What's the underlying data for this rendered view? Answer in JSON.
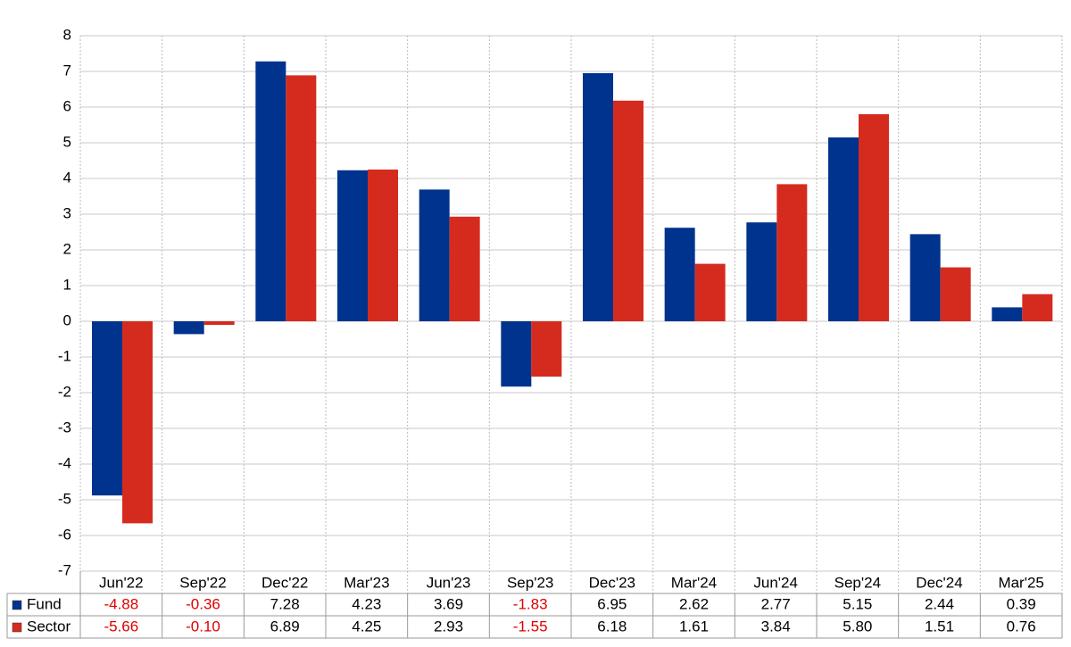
{
  "chart_data": {
    "type": "bar",
    "categories": [
      "Jun'22",
      "Sep'22",
      "Dec'22",
      "Mar'23",
      "Jun'23",
      "Sep'23",
      "Dec'23",
      "Mar'24",
      "Jun'24",
      "Sep'24",
      "Dec'24",
      "Mar'25"
    ],
    "series": [
      {
        "name": "Fund",
        "color": "#00338d",
        "values": [
          -4.88,
          -0.36,
          7.28,
          4.23,
          3.69,
          -1.83,
          6.95,
          2.62,
          2.77,
          5.15,
          2.44,
          0.39
        ],
        "value_labels": [
          "-4.88",
          "-0.36",
          "7.28",
          "4.23",
          "3.69",
          "-1.83",
          "6.95",
          "2.62",
          "2.77",
          "5.15",
          "2.44",
          "0.39"
        ]
      },
      {
        "name": "Sector",
        "color": "#d52b1e",
        "values": [
          -5.66,
          -0.1,
          6.89,
          4.25,
          2.93,
          -1.55,
          6.18,
          1.61,
          3.84,
          5.8,
          1.51,
          0.76
        ],
        "value_labels": [
          "-5.66",
          "-0.10",
          "6.89",
          "4.25",
          "2.93",
          "-1.55",
          "6.18",
          "1.61",
          "3.84",
          "5.80",
          "1.51",
          "0.76"
        ]
      }
    ],
    "ylim": [
      -7,
      8
    ],
    "yticks": [
      -7,
      -6,
      -5,
      -4,
      -3,
      -2,
      -1,
      0,
      1,
      2,
      3,
      4,
      5,
      6,
      7,
      8
    ],
    "grid": true,
    "negative_label_color": "#e00000"
  }
}
